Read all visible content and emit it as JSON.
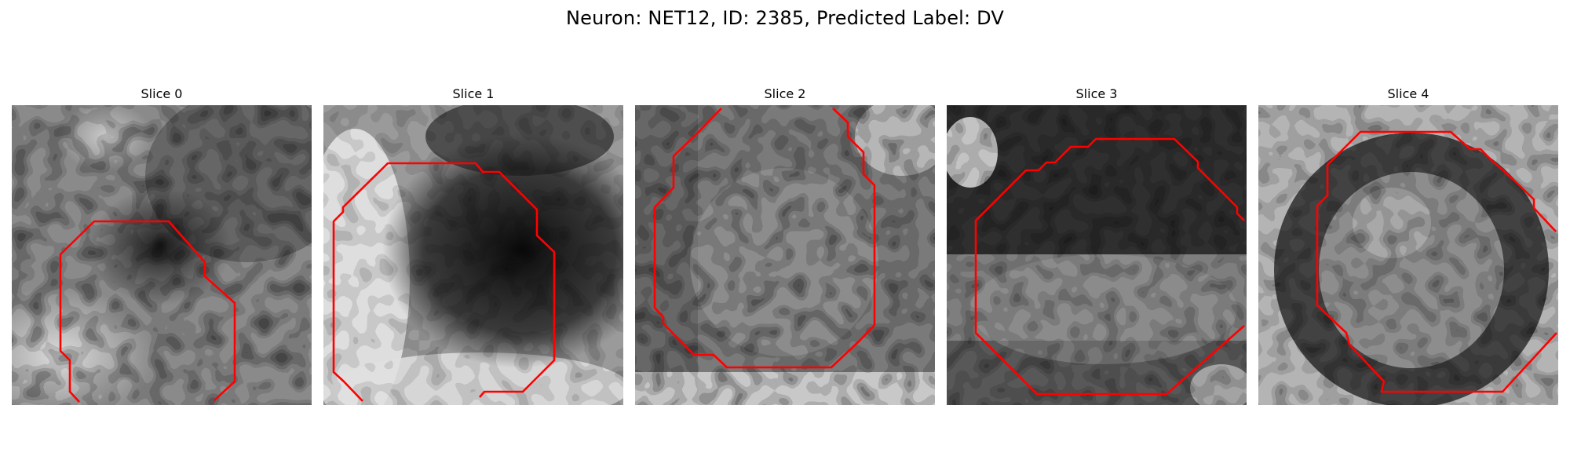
{
  "figure": {
    "title": "Neuron: NET12, ID: 2385, Predicted Label: DV"
  },
  "slices": [
    {
      "label": "Slice 0",
      "contour_color": "#ff0000"
    },
    {
      "label": "Slice 1",
      "contour_color": "#ff0000"
    },
    {
      "label": "Slice 2",
      "contour_color": "#ff0000"
    },
    {
      "label": "Slice 3",
      "contour_color": "#ff0000"
    },
    {
      "label": "Slice 4",
      "contour_color": "#ff0000"
    }
  ]
}
